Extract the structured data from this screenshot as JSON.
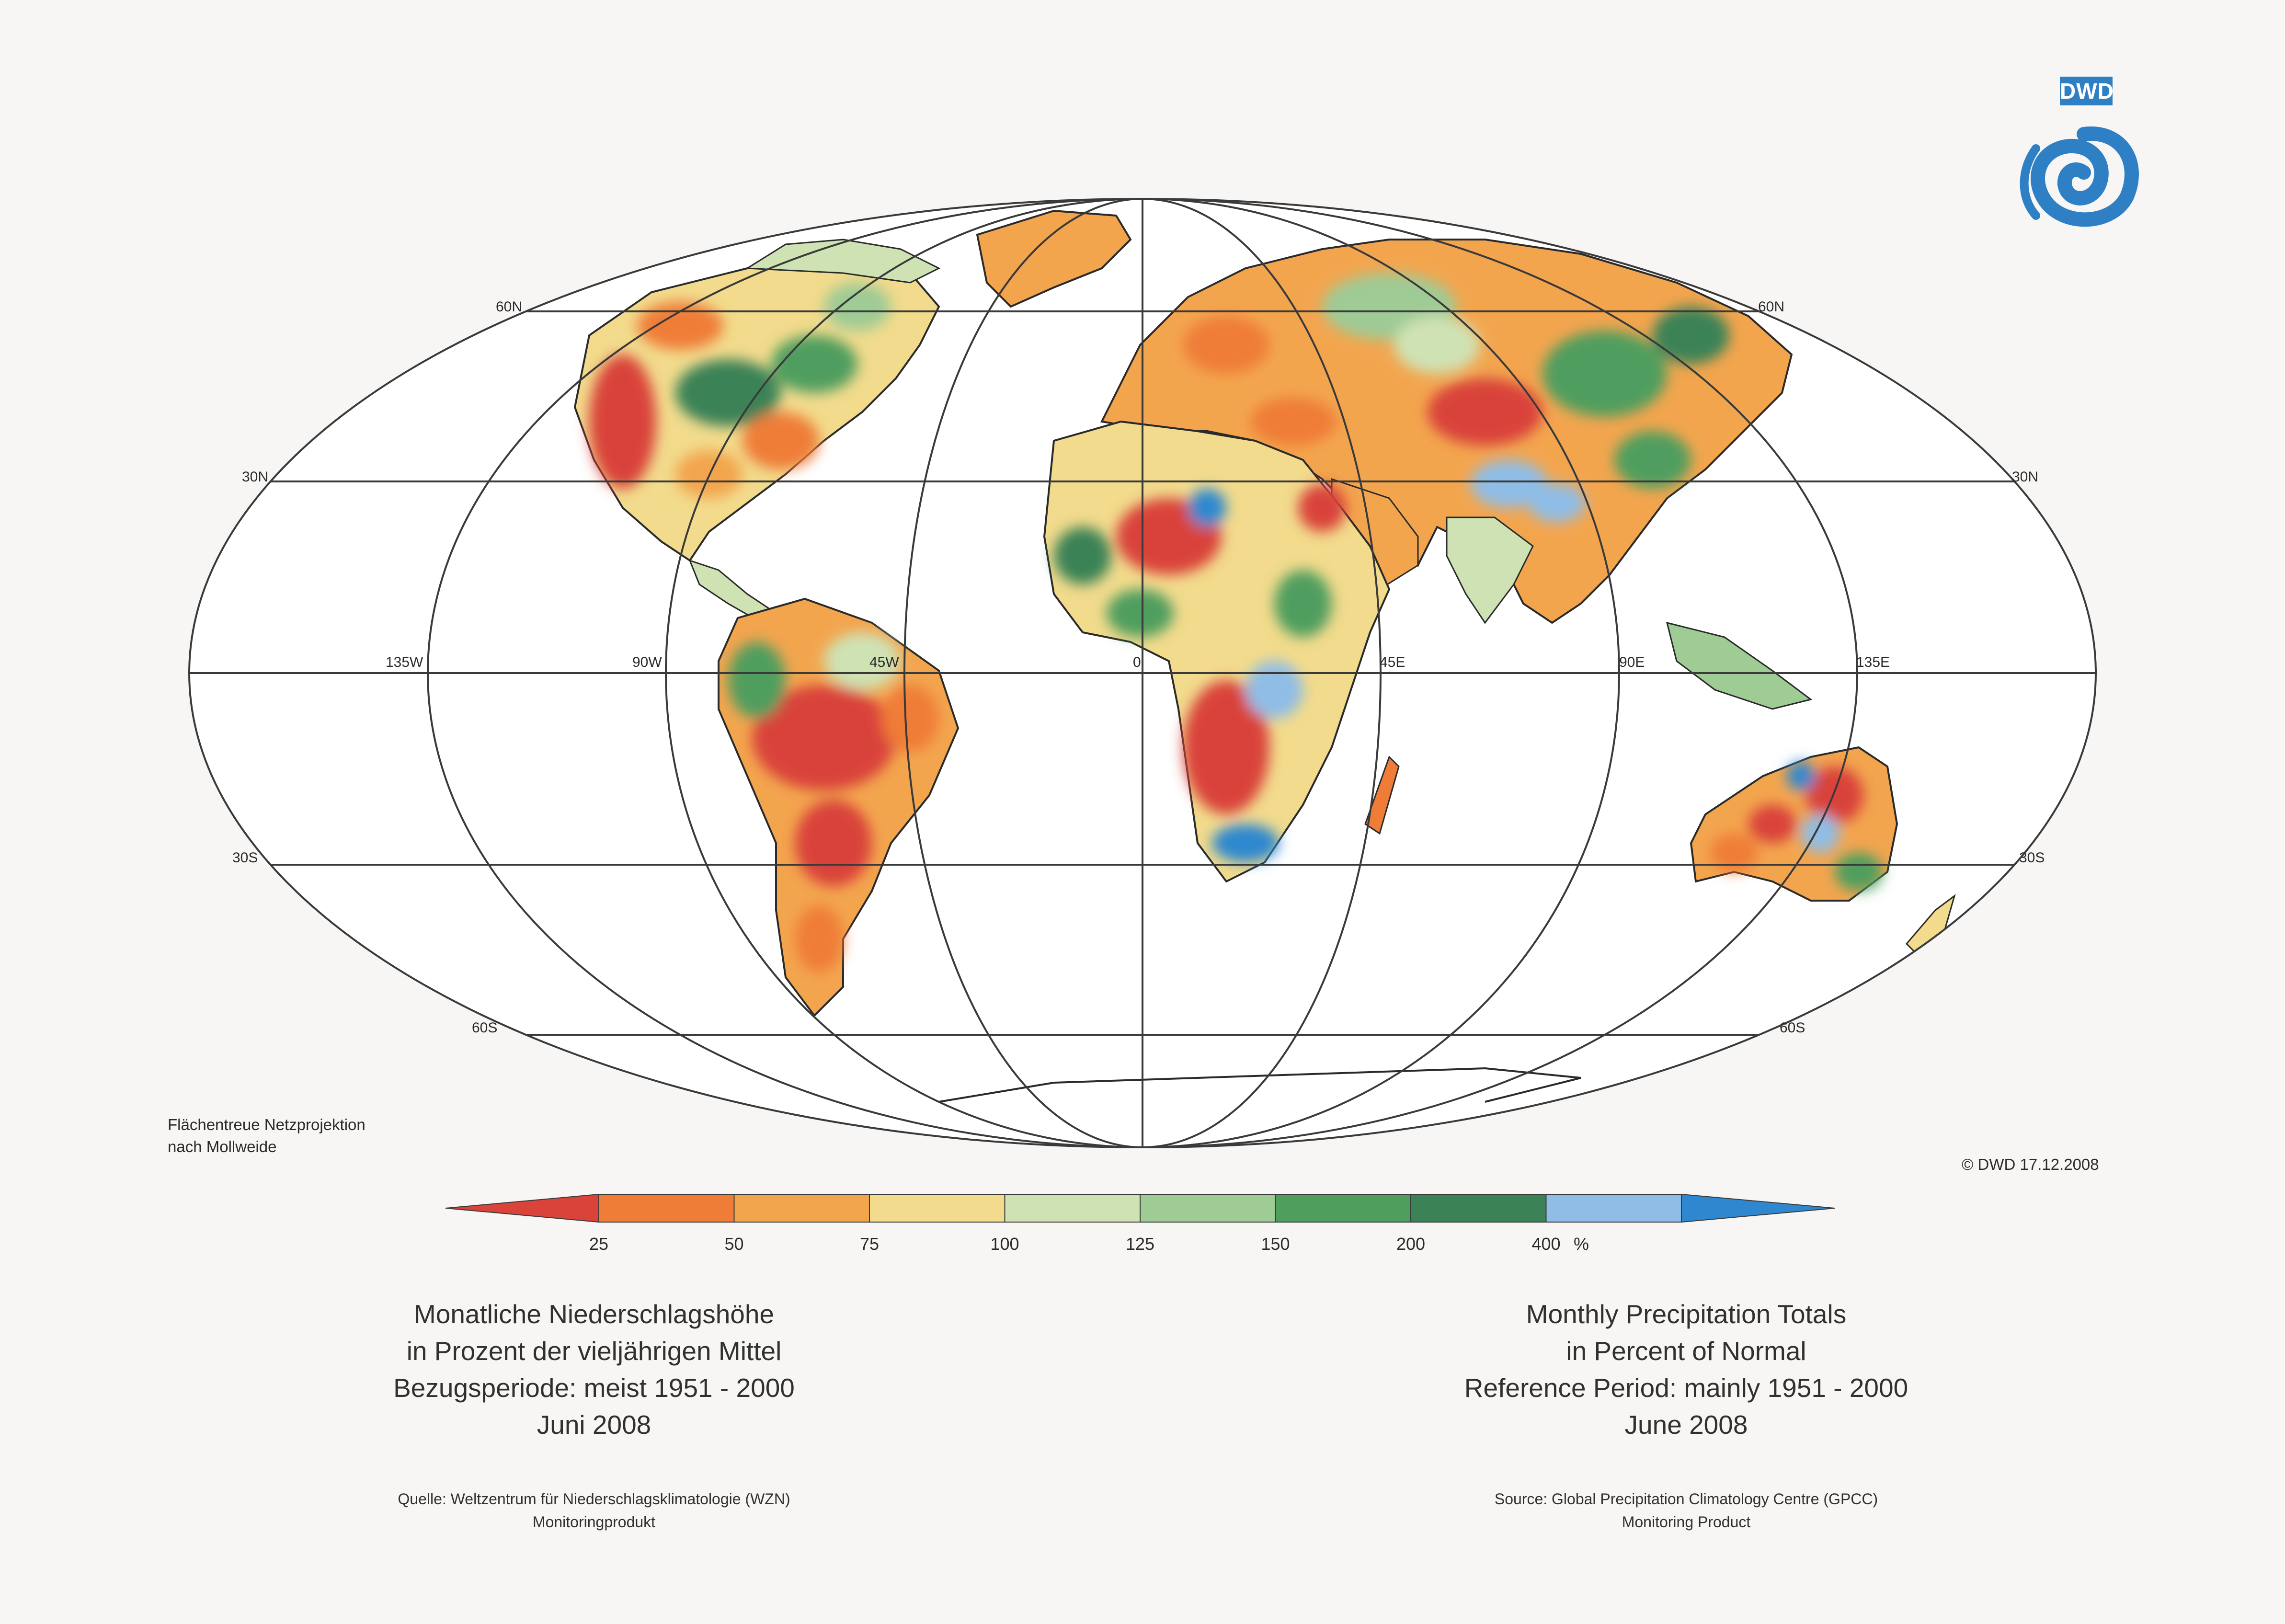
{
  "logo": {
    "text": "DWD",
    "color": "#2e7fc4"
  },
  "map": {
    "projection_note": [
      "Flächentreue Netzprojektion",
      "nach Mollweide"
    ],
    "latitude_labels_left": [
      "60N",
      "30N",
      "30S",
      "60S"
    ],
    "latitude_labels_right": [
      "60N",
      "30N",
      "30S",
      "60S"
    ],
    "longitude_labels": [
      "135W",
      "90W",
      "45W",
      "0",
      "45E",
      "90E",
      "135E"
    ],
    "copyright": "© DWD 17.12.2008",
    "ocean_color": "#ffffff",
    "grid_color": "#3a3a3a"
  },
  "legend": {
    "ticks": [
      "25",
      "50",
      "75",
      "100",
      "125",
      "150",
      "200",
      "400"
    ],
    "unit": "%",
    "bins": [
      {
        "range": "<25",
        "color": "#d9433a"
      },
      {
        "range": "25-50",
        "color": "#ef7d38"
      },
      {
        "range": "50-75",
        "color": "#f3a54e"
      },
      {
        "range": "75-100",
        "color": "#f2db8c"
      },
      {
        "range": "100-125",
        "color": "#cfe2b4"
      },
      {
        "range": "125-150",
        "color": "#9fcb95"
      },
      {
        "range": "150-200",
        "color": "#4f9e5e"
      },
      {
        "range": "200-400",
        "color": "#3b8256"
      },
      {
        "range": "400+",
        "color": "#8fbde6"
      },
      {
        "range": ">400",
        "color": "#2f88cf"
      }
    ]
  },
  "caption_de": {
    "line1": "Monatliche Niederschlagshöhe",
    "line2": "in Prozent der vieljährigen Mittel",
    "line3": "Bezugsperiode: meist 1951 - 2000",
    "line4": "Juni 2008"
  },
  "caption_en": {
    "line1": "Monthly Precipitation Totals",
    "line2": "in Percent of Normal",
    "line3": "Reference Period: mainly 1951 - 2000",
    "line4": "June 2008"
  },
  "source_de": {
    "line1": "Quelle: Weltzentrum für Niederschlagsklimatologie (WZN)",
    "line2": "Monitoringprodukt"
  },
  "source_en": {
    "line1": "Source: Global Precipitation Climatology Centre (GPCC)",
    "line2": "Monitoring Product"
  }
}
